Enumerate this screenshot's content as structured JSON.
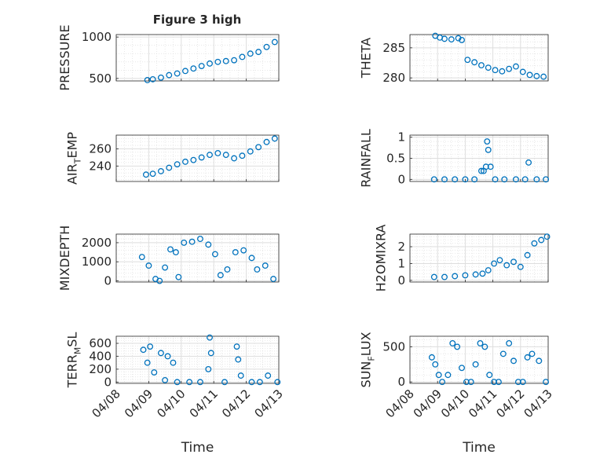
{
  "figure": {
    "title": "Figure 3 high"
  },
  "chart_data": [
    {
      "type": "scatter",
      "name": "pressure",
      "ylabel": "PRESSURE",
      "ylim": [
        470,
        1030
      ],
      "yticks": [
        500,
        1000
      ],
      "x": [
        "04/08 23:00",
        "04/09 03:00",
        "04/09 09:00",
        "04/09 15:00",
        "04/09 21:00",
        "04/10 03:00",
        "04/10 09:00",
        "04/10 15:00",
        "04/10 21:00",
        "04/11 03:00",
        "04/11 09:00",
        "04/11 15:00",
        "04/11 21:00",
        "04/12 03:00",
        "04/12 09:00",
        "04/12 15:00",
        "04/12 21:00"
      ],
      "y": [
        480,
        490,
        510,
        540,
        560,
        590,
        620,
        650,
        680,
        700,
        710,
        720,
        760,
        800,
        820,
        880,
        940
      ]
    },
    {
      "type": "scatter",
      "name": "theta",
      "ylabel": "THETA",
      "ylim": [
        279.5,
        287.2
      ],
      "yticks": [
        280,
        285
      ],
      "x": [
        "04/08 22:00",
        "04/09 02:00",
        "04/09 06:00",
        "04/09 12:00",
        "04/09 18:00",
        "04/09 21:00",
        "04/10 02:00",
        "04/10 08:00",
        "04/10 14:00",
        "04/10 20:00",
        "04/11 02:00",
        "04/11 08:00",
        "04/11 14:00",
        "04/11 20:00",
        "04/12 02:00",
        "04/12 08:00",
        "04/12 14:00",
        "04/12 20:00"
      ],
      "y": [
        287,
        286.7,
        286.5,
        286.4,
        286.6,
        286.3,
        283,
        282.6,
        282.1,
        281.7,
        281.3,
        281.1,
        281.5,
        281.9,
        281,
        280.5,
        280.3,
        280.2
      ]
    },
    {
      "type": "scatter",
      "name": "air_temp",
      "ylabel": "AIR_TEMP",
      "ylim": [
        222,
        276
      ],
      "yticks": [
        240,
        260
      ],
      "x": [
        "04/08 22:00",
        "04/09 03:00",
        "04/09 09:00",
        "04/09 15:00",
        "04/09 21:00",
        "04/10 03:00",
        "04/10 09:00",
        "04/10 15:00",
        "04/10 21:00",
        "04/11 03:00",
        "04/11 09:00",
        "04/11 15:00",
        "04/11 21:00",
        "04/12 03:00",
        "04/12 09:00",
        "04/12 15:00",
        "04/12 21:00"
      ],
      "y": [
        230,
        231,
        234,
        238,
        242,
        245,
        247,
        250,
        253,
        255,
        253,
        249,
        252,
        257,
        262,
        268,
        272
      ]
    },
    {
      "type": "scatter",
      "name": "rainfall",
      "ylabel": "RAINFALL",
      "ylim": [
        -0.05,
        1.05
      ],
      "yticks": [
        0,
        0.5,
        1
      ],
      "x": [
        "04/08 21:00",
        "04/09 06:00",
        "04/09 15:00",
        "04/10 00:00",
        "04/10 08:00",
        "04/10 14:00",
        "04/10 16:00",
        "04/10 18:00",
        "04/10 19:00",
        "04/10 20:00",
        "04/10 22:00",
        "04/11 02:00",
        "04/11 10:00",
        "04/11 20:00",
        "04/12 04:00",
        "04/12 07:00",
        "04/12 14:00",
        "04/12 22:00"
      ],
      "y": [
        0,
        0,
        0,
        0,
        0,
        0.2,
        0.2,
        0.3,
        0.9,
        0.7,
        0.3,
        0,
        0,
        0,
        0,
        0.4,
        0,
        0
      ]
    },
    {
      "type": "scatter",
      "name": "mixdepth",
      "ylabel": "MIXDEPTH",
      "ylim": [
        -60,
        2450
      ],
      "yticks": [
        0,
        1000,
        2000
      ],
      "x": [
        "04/08 19:00",
        "04/09 00:00",
        "04/09 05:00",
        "04/09 08:00",
        "04/09 12:00",
        "04/09 16:00",
        "04/09 20:00",
        "04/09 22:00",
        "04/10 02:00",
        "04/10 08:00",
        "04/10 14:00",
        "04/10 20:00",
        "04/11 01:00",
        "04/11 05:00",
        "04/11 10:00",
        "04/11 16:00",
        "04/11 22:00",
        "04/12 04:00",
        "04/12 08:00",
        "04/12 14:00",
        "04/12 20:00"
      ],
      "y": [
        1250,
        800,
        100,
        0,
        700,
        1650,
        1500,
        200,
        2000,
        2050,
        2200,
        1900,
        1400,
        300,
        600,
        1500,
        1600,
        1200,
        600,
        800,
        100
      ]
    },
    {
      "type": "scatter",
      "name": "h2omixra",
      "ylabel": "H2OMIXRA",
      "ylim": [
        -0.1,
        2.75
      ],
      "yticks": [
        0,
        1,
        2
      ],
      "x": [
        "04/08 21:00",
        "04/09 06:00",
        "04/09 15:00",
        "04/10 00:00",
        "04/10 09:00",
        "04/10 15:00",
        "04/10 20:00",
        "04/11 01:00",
        "04/11 06:00",
        "04/11 12:00",
        "04/11 18:00",
        "04/12 00:00",
        "04/12 06:00",
        "04/12 12:00",
        "04/12 18:00",
        "04/12 23:00"
      ],
      "y": [
        0.2,
        0.2,
        0.25,
        0.3,
        0.35,
        0.4,
        0.6,
        1.0,
        1.2,
        0.9,
        1.1,
        0.8,
        1.5,
        2.2,
        2.4,
        2.6
      ]
    },
    {
      "type": "scatter",
      "name": "terr_msl",
      "ylabel": "TERR_MSL",
      "ylim": [
        -20,
        710
      ],
      "yticks": [
        0,
        200,
        400,
        600
      ],
      "x": [
        "04/08 20:00",
        "04/08 23:00",
        "04/09 01:00",
        "04/09 04:00",
        "04/09 09:00",
        "04/09 12:00",
        "04/09 14:00",
        "04/09 18:00",
        "04/09 21:00",
        "04/10 06:00",
        "04/10 14:00",
        "04/10 20:00",
        "04/10 21:00",
        "04/10 22:00",
        "04/11 08:00",
        "04/11 17:00",
        "04/11 18:00",
        "04/11 20:00",
        "04/12 04:00",
        "04/12 10:00",
        "04/12 16:00",
        "04/12 23:00"
      ],
      "y": [
        500,
        300,
        550,
        150,
        450,
        30,
        400,
        300,
        0,
        0,
        0,
        200,
        690,
        450,
        0,
        550,
        350,
        100,
        0,
        0,
        100,
        0
      ]
    },
    {
      "type": "scatter",
      "name": "sun_flux",
      "ylabel": "SUN_FLUX",
      "xlabel": "Time",
      "ylim": [
        -20,
        650
      ],
      "yticks": [
        0,
        500
      ],
      "x": [
        "04/08 19:00",
        "04/08 22:00",
        "04/09 01:00",
        "04/09 04:00",
        "04/09 09:00",
        "04/09 13:00",
        "04/09 17:00",
        "04/09 21:00",
        "04/10 01:00",
        "04/10 05:00",
        "04/10 09:00",
        "04/10 13:00",
        "04/10 17:00",
        "04/10 21:00",
        "04/11 01:00",
        "04/11 05:00",
        "04/11 09:00",
        "04/11 14:00",
        "04/11 18:00",
        "04/11 22:00",
        "04/12 02:00",
        "04/12 06:00",
        "04/12 10:00",
        "04/12 16:00",
        "04/12 22:00"
      ],
      "y": [
        350,
        250,
        100,
        0,
        100,
        550,
        500,
        200,
        0,
        0,
        250,
        550,
        500,
        100,
        0,
        0,
        400,
        550,
        300,
        0,
        0,
        350,
        400,
        300,
        0
      ]
    }
  ],
  "x_axis": {
    "label": "Time",
    "range": [
      "04/08 00:00",
      "04/13 00:00"
    ],
    "ticks": [
      "04/08",
      "04/09",
      "04/10",
      "04/11",
      "04/12",
      "04/13"
    ]
  },
  "style": {
    "marker_color": "#0072bd",
    "marker": "open-circle",
    "grid": true,
    "minor_grid": true
  }
}
